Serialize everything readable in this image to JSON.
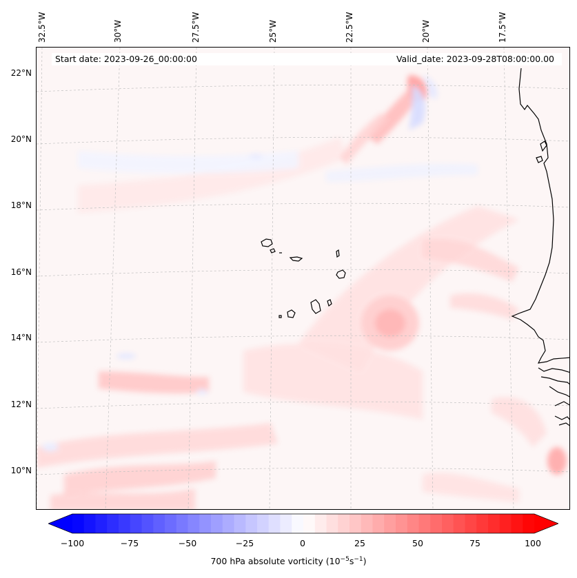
{
  "map": {
    "start_date_text": "Start date: 2023-09-26_00:00:00",
    "valid_date_text": "Valid_date: 2023-09-28T08:00:00.00",
    "lon_labels": [
      "32.5°W",
      "30°W",
      "27.5°W",
      "25°W",
      "22.5°W",
      "20°W",
      "17.5°W"
    ],
    "lat_labels": [
      "22°N",
      "20°N",
      "18°N",
      "16°N",
      "14°N",
      "12°N",
      "10°N"
    ],
    "gridlines": true,
    "field": "700 hPa absolute vorticity",
    "features": [
      "Cape Verde islands",
      "West African coastline (Mauritania, Senegal, Guinea-Bissau, Guinea)",
      "cyclonic vorticity maximum southeast of Cape Verde"
    ]
  },
  "colorbar": {
    "ticks": [
      "−100",
      "−75",
      "−50",
      "−25",
      "0",
      "25",
      "50",
      "75",
      "100"
    ],
    "min": -100,
    "max": 100,
    "step": 5,
    "label_prefix": "700 hPa absolute vorticity (10",
    "label_exp1": "−5",
    "label_mid": "s",
    "label_exp2": "−1",
    "label_suffix": ")",
    "negative_color": "#0000ff",
    "zero_color": "#ffffff",
    "positive_color": "#ff0000",
    "extend": "both"
  }
}
